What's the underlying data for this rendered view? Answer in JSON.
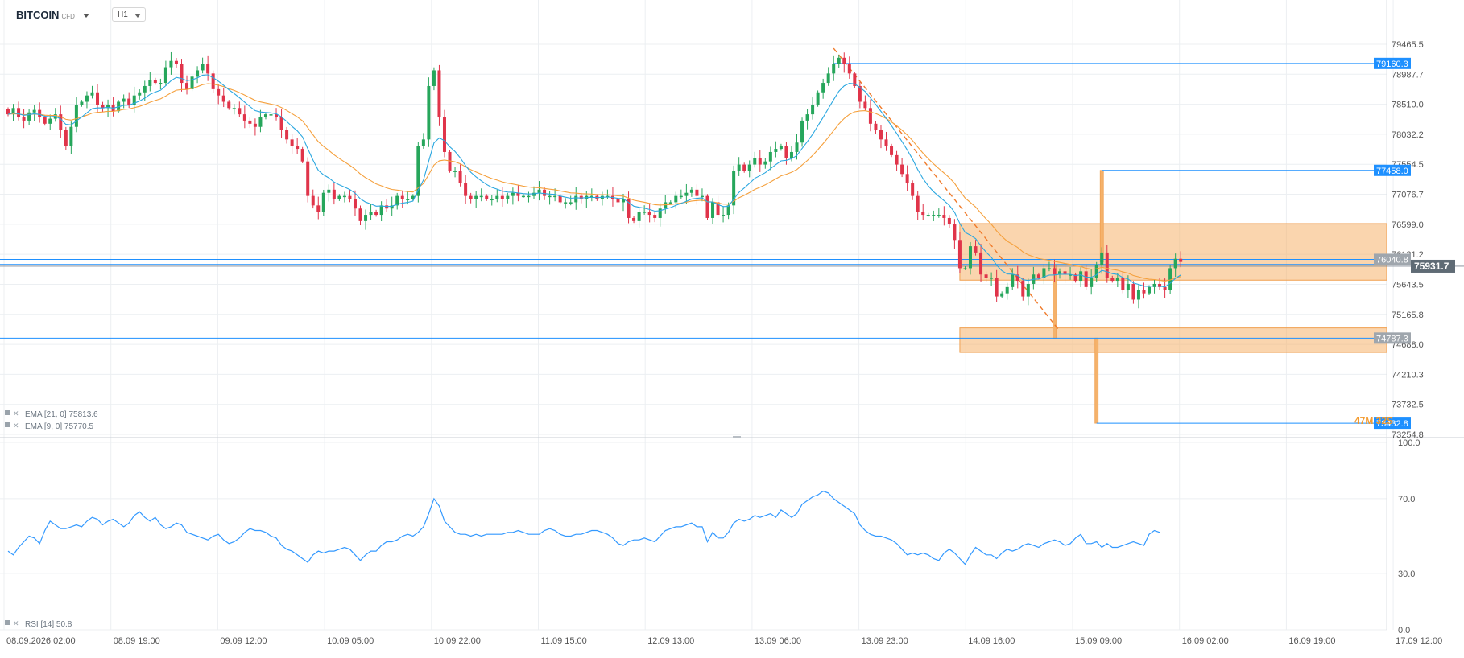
{
  "header": {
    "symbol": "BITCOIN",
    "instrument_type": "CFD",
    "timeframe": "H1"
  },
  "price_axis": {
    "ticks": [
      "79465.5",
      "78987.7",
      "78510.0",
      "78032.2",
      "77554.5",
      "77076.7",
      "76599.0",
      "76121.2",
      "75643.5",
      "75165.8",
      "74688.0",
      "74210.3",
      "73732.5",
      "73254.8"
    ]
  },
  "rsi_axis": {
    "ticks": [
      "100.0",
      "70.0",
      "30.0",
      "0.0"
    ]
  },
  "time_axis": {
    "labels": [
      "08.09.2026 02:00",
      "08.09 19:00",
      "09.09 12:00",
      "10.09 05:00",
      "10.09 22:00",
      "11.09 15:00",
      "12.09 13:00",
      "13.09 06:00",
      "13.09 23:00",
      "14.09 16:00",
      "15.09 09:00",
      "16.09 02:00",
      "16.09 19:00",
      "17.09 12:00"
    ]
  },
  "legend": {
    "ema21": "EMA [21, 0] 75813.6",
    "ema9": "EMA [9, 0] 75770.5",
    "rsi": "RSI [14] 50.8"
  },
  "price_tags": {
    "current": "75931.7",
    "line1": "79160.3",
    "line2": "77458.0",
    "line3": "76040.8",
    "line4": "74787.3",
    "line5": "73432.8",
    "countdown": "47M 32S"
  },
  "colors": {
    "up": "#26a65b",
    "down": "#e0344a",
    "ema21": "#f5a03c",
    "ema9": "#2aa7e0",
    "rsi": "#3399ff",
    "line": "#1e90ff",
    "zone": "#f5b26b",
    "tag_blue": "#1e90ff",
    "tag_gray": "#9fa6ad",
    "tag_dark": "#5f6b75"
  },
  "chart_data": [
    {
      "type": "candlestick",
      "title": "BITCOIN CFD H1",
      "ylim": [
        73254.8,
        79465.5
      ],
      "closes": [
        78350,
        78450,
        78300,
        78250,
        78380,
        78420,
        78300,
        78200,
        78280,
        78350,
        78100,
        77850,
        78150,
        78500,
        78550,
        78650,
        78700,
        78500,
        78450,
        78500,
        78400,
        78550,
        78600,
        78500,
        78650,
        78700,
        78800,
        78900,
        78850,
        78850,
        79100,
        79200,
        79150,
        78850,
        78750,
        78950,
        79050,
        79150,
        79000,
        78750,
        78650,
        78550,
        78450,
        78450,
        78350,
        78250,
        78200,
        78150,
        78300,
        78350,
        78350,
        78300,
        78100,
        77950,
        77850,
        77800,
        77600,
        77050,
        76900,
        76800,
        77100,
        77150,
        77000,
        77050,
        77050,
        77000,
        76850,
        76650,
        76750,
        76800,
        76750,
        76900,
        76850,
        76900,
        77050,
        77000,
        77000,
        77050,
        77850,
        77950,
        78800,
        79050,
        78300,
        77750,
        77450,
        77450,
        77250,
        77050,
        77000,
        77050,
        77050,
        77000,
        77000,
        77050,
        77000,
        77050,
        77100,
        77050,
        77050,
        77050,
        77100,
        77150,
        77050,
        77050,
        77050,
        76950,
        76950,
        76950,
        77050,
        77000,
        77050,
        77050,
        77000,
        77050,
        77050,
        77000,
        76950,
        77000,
        76700,
        76650,
        76800,
        76800,
        76750,
        76700,
        76850,
        76950,
        76950,
        77050,
        77050,
        77100,
        77150,
        77050,
        77050,
        76700,
        76950,
        76750,
        76750,
        76900,
        77450,
        77550,
        77450,
        77550,
        77650,
        77550,
        77600,
        77750,
        77800,
        77850,
        77650,
        77750,
        77900,
        78250,
        78350,
        78500,
        78700,
        78850,
        79000,
        79150,
        79250,
        79150,
        79000,
        78800,
        78550,
        78450,
        78200,
        78100,
        77950,
        77850,
        77700,
        77550,
        77400,
        77250,
        77050,
        76800,
        76750,
        76750,
        76750,
        76750,
        76700,
        76600,
        76350,
        75900,
        75900,
        76250,
        76150,
        75800,
        75750,
        75750,
        75450,
        75500,
        75600,
        75800,
        75700,
        75450,
        75650,
        75800,
        75750,
        75900,
        75900,
        75800,
        75850,
        75800,
        75800,
        75700,
        75850,
        75600,
        75750,
        75950,
        76150,
        75750,
        75700,
        75750,
        75550,
        75650,
        75400,
        75550,
        75500,
        75600,
        75650,
        75600,
        75550,
        75900,
        76050,
        76000
      ]
    },
    {
      "type": "line",
      "title": "RSI [14] 50.8",
      "ylim": [
        0,
        100
      ],
      "values": [
        42,
        40,
        44,
        47,
        50,
        49,
        46,
        53,
        58,
        56,
        54,
        54,
        55,
        56,
        55,
        58,
        60,
        59,
        56,
        58,
        59,
        57,
        55,
        57,
        61,
        63,
        60,
        58,
        60,
        56,
        54,
        55,
        57,
        56,
        52,
        51,
        50,
        49,
        48,
        50,
        51,
        48,
        46,
        47,
        49,
        52,
        54,
        53,
        53,
        52,
        50,
        49,
        45,
        43,
        42,
        40,
        38,
        36,
        40,
        42,
        41,
        42,
        42,
        43,
        44,
        43,
        40,
        37,
        40,
        42,
        42,
        45,
        47,
        47,
        48,
        50,
        51,
        50,
        52,
        55,
        62,
        70,
        66,
        58,
        55,
        52,
        51,
        51,
        50,
        51,
        50,
        51,
        51,
        51,
        51,
        52,
        52,
        53,
        52,
        51,
        51,
        51,
        53,
        54,
        53,
        51,
        50,
        50,
        51,
        51,
        52,
        53,
        53,
        52,
        51,
        49,
        46,
        45,
        47,
        48,
        48,
        49,
        48,
        47,
        50,
        53,
        54,
        55,
        55,
        56,
        57,
        55,
        55,
        47,
        52,
        49,
        49,
        52,
        57,
        59,
        58,
        59,
        61,
        60,
        61,
        62,
        60,
        64,
        62,
        60,
        62,
        67,
        69,
        71,
        72,
        74,
        73,
        70,
        68,
        66,
        64,
        62,
        56,
        53,
        51,
        50,
        50,
        49,
        48,
        46,
        43,
        40,
        41,
        40,
        41,
        40,
        38,
        37,
        41,
        43,
        41,
        38,
        35,
        40,
        44,
        42,
        40,
        40,
        38,
        41,
        43,
        42,
        43,
        45,
        46,
        45,
        44,
        46,
        47,
        48,
        47,
        45,
        46,
        49,
        51,
        46,
        46,
        47,
        44,
        46,
        44,
        44,
        45,
        46,
        47,
        46,
        45,
        51,
        53,
        52
      ]
    }
  ]
}
